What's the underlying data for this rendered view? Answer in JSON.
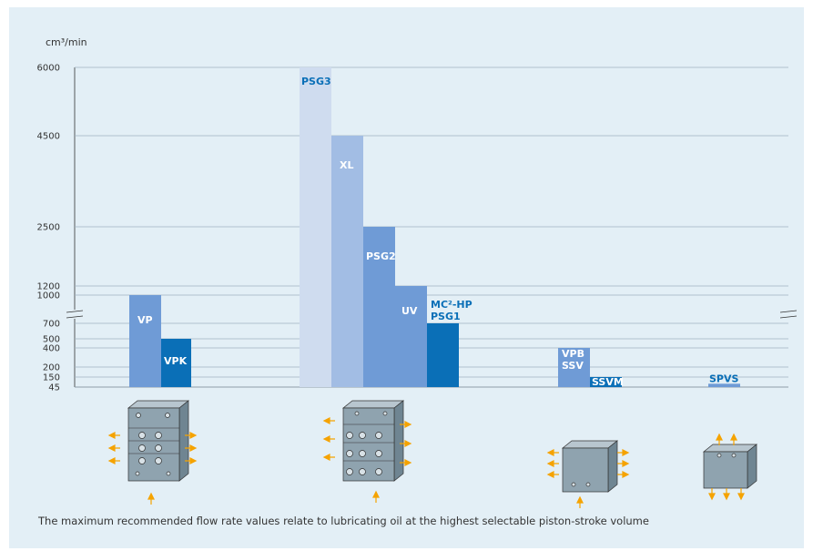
{
  "chart_data": {
    "type": "bar",
    "ylabel": "cm³/min",
    "y_ticks": [
      "6000",
      "4500",
      "2500",
      "1200",
      "1000",
      "700",
      "500",
      "400",
      "200",
      "150",
      "45"
    ],
    "axis_break": "between 700 and 1000",
    "grid": true,
    "groups": [
      {
        "name": "VP/VPK",
        "bars": [
          {
            "label": "VP",
            "value": 1000
          },
          {
            "label": "VPK",
            "value": 500
          }
        ]
      },
      {
        "name": "PSG",
        "bars": [
          {
            "label": "PSG3",
            "value": 6000
          },
          {
            "label": "XL",
            "value": 4500
          },
          {
            "label": "PSG2",
            "value": 2500
          },
          {
            "label": "UV",
            "value": 1200
          },
          {
            "label": "MC²-HP\nPSG1",
            "value": 700
          }
        ]
      },
      {
        "name": "VPB",
        "bars": [
          {
            "label": "VPB\nSSV",
            "value": 400
          },
          {
            "label": "SSVM",
            "value": 150
          }
        ]
      },
      {
        "name": "SPVS",
        "bars": [
          {
            "label": "SPVS",
            "value": 80
          }
        ]
      }
    ],
    "colors": {
      "light": "#cfdcef",
      "mid_light": "#a2bde4",
      "mid": "#6f9bd6",
      "dark": "#0a6fb7",
      "accent": "#f5a300"
    }
  },
  "footnote": "The maximum recommended flow rate values relate to lubricating oil at the highest selectable piston-stroke volume"
}
